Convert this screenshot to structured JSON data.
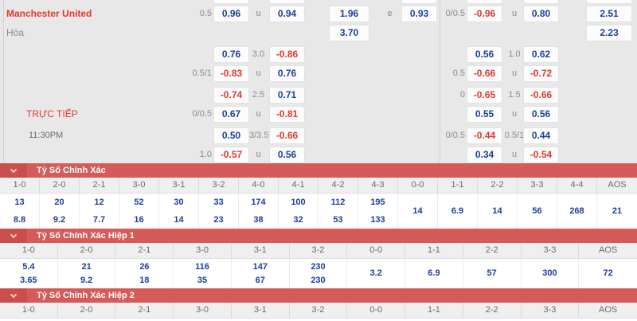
{
  "colors": {
    "accent_red": "#e8352a",
    "odds_blue": "#1c3f9e",
    "banner_red": "#d45b59",
    "banner_dark_red": "#ca4e4b",
    "panel_bg": "#e9e8e8"
  },
  "odds": {
    "team": "Manchester United",
    "draw": "Hòa",
    "live": "TRỰC TIẾP",
    "time": "11:30PM",
    "sliver_cols": [
      2,
      4,
      7,
      9,
      11,
      12
    ],
    "rows": [
      {
        "name": "team",
        "cells": [
          [
            1,
            "0.5",
            "l"
          ],
          [
            2,
            "0.96",
            "b"
          ],
          [
            3,
            "u",
            "l"
          ],
          [
            4,
            "0.94",
            "b"
          ],
          [
            5,
            "1.96",
            "b"
          ],
          [
            6,
            "e",
            "l"
          ],
          [
            7,
            "0.93",
            "b"
          ],
          [
            8,
            "0/0.5",
            "l"
          ],
          [
            9,
            "-0.96",
            "r"
          ],
          [
            10,
            "u",
            "l"
          ],
          [
            11,
            "0.80",
            "b"
          ],
          [
            12,
            "2.51",
            "b"
          ]
        ]
      },
      {
        "name": "draw",
        "cells": [
          [
            5,
            "3.70",
            "b"
          ],
          [
            12,
            "2.23",
            "b"
          ]
        ]
      },
      {
        "cells": [
          [
            2,
            "0.76",
            "b"
          ],
          [
            3,
            "3.0",
            "l"
          ],
          [
            4,
            "-0.86",
            "r"
          ],
          [
            9,
            "0.56",
            "b"
          ],
          [
            10,
            "1.0",
            "l"
          ],
          [
            11,
            "0.62",
            "b"
          ]
        ]
      },
      {
        "cells": [
          [
            1,
            "0.5/1",
            "l"
          ],
          [
            2,
            "-0.83",
            "r"
          ],
          [
            3,
            "u",
            "l"
          ],
          [
            4,
            "0.76",
            "b"
          ],
          [
            8,
            "0.5",
            "l"
          ],
          [
            9,
            "-0.66",
            "r"
          ],
          [
            10,
            "u",
            "l"
          ],
          [
            11,
            "-0.72",
            "r"
          ]
        ]
      },
      {
        "cells": [
          [
            2,
            "-0.74",
            "r"
          ],
          [
            3,
            "2.5",
            "l"
          ],
          [
            4,
            "0.71",
            "b"
          ],
          [
            8,
            "0",
            "l"
          ],
          [
            9,
            "-0.65",
            "r"
          ],
          [
            10,
            "1.5",
            "l"
          ],
          [
            11,
            "-0.66",
            "r"
          ]
        ]
      },
      {
        "name": "live",
        "cells": [
          [
            1,
            "0/0.5",
            "l"
          ],
          [
            2,
            "0.67",
            "b"
          ],
          [
            3,
            "u",
            "l"
          ],
          [
            4,
            "-0.81",
            "r"
          ],
          [
            9,
            "0.55",
            "b"
          ],
          [
            10,
            "u",
            "l"
          ],
          [
            11,
            "0.56",
            "b"
          ]
        ]
      },
      {
        "name": "time",
        "cells": [
          [
            2,
            "0.50",
            "b"
          ],
          [
            3,
            "3/3.5",
            "l"
          ],
          [
            4,
            "-0.66",
            "r"
          ],
          [
            8,
            "0/0.5",
            "l"
          ],
          [
            9,
            "-0.44",
            "r"
          ],
          [
            10,
            "0.5/1",
            "l"
          ],
          [
            11,
            "0.44",
            "b"
          ]
        ]
      },
      {
        "cells": [
          [
            1,
            "1.0",
            "l"
          ],
          [
            2,
            "-0.57",
            "r"
          ],
          [
            3,
            "u",
            "l"
          ],
          [
            4,
            "0.56",
            "b"
          ],
          [
            9,
            "0.34",
            "b"
          ],
          [
            10,
            "u",
            "l"
          ],
          [
            11,
            "-0.54",
            "r"
          ]
        ]
      }
    ]
  },
  "score_sections": [
    {
      "title": "Tỷ Số Chính Xác",
      "columns": [
        "1-0",
        "2-0",
        "2-1",
        "3-0",
        "3-1",
        "3-2",
        "4-0",
        "4-1",
        "4-2",
        "4-3",
        "0-0",
        "1-1",
        "2-2",
        "3-3",
        "4-4",
        "AOS"
      ],
      "values": [
        [
          "13",
          "8.8"
        ],
        [
          "20",
          "9.2"
        ],
        [
          "12",
          "7.7"
        ],
        [
          "52",
          "16"
        ],
        [
          "30",
          "14"
        ],
        [
          "33",
          "23"
        ],
        [
          "174",
          "38"
        ],
        [
          "100",
          "32"
        ],
        [
          "112",
          "53"
        ],
        [
          "195",
          "133"
        ],
        [
          "14"
        ],
        [
          "6.9"
        ],
        [
          "14"
        ],
        [
          "56"
        ],
        [
          "268"
        ],
        [
          "21"
        ]
      ]
    },
    {
      "title": "Tỷ Số Chính Xác Hiệp 1",
      "columns": [
        "1-0",
        "2-0",
        "2-1",
        "3-0",
        "3-1",
        "3-2",
        "0-0",
        "1-1",
        "2-2",
        "3-3",
        "AOS"
      ],
      "values": [
        [
          "5.4",
          "3.65"
        ],
        [
          "21",
          "9.2"
        ],
        [
          "26",
          "18"
        ],
        [
          "116",
          "35"
        ],
        [
          "147",
          "67"
        ],
        [
          "230",
          "230"
        ],
        [
          "3.2"
        ],
        [
          "6.9"
        ],
        [
          "57"
        ],
        [
          "300"
        ],
        [
          "72"
        ]
      ]
    },
    {
      "title": "Tỷ Số Chính Xác Hiệp 2",
      "columns": [
        "1-0",
        "2-0",
        "2-1",
        "3-0",
        "3-1",
        "3-2",
        "0-0",
        "1-1",
        "2-2",
        "3-3",
        "AOS"
      ],
      "values": []
    }
  ]
}
